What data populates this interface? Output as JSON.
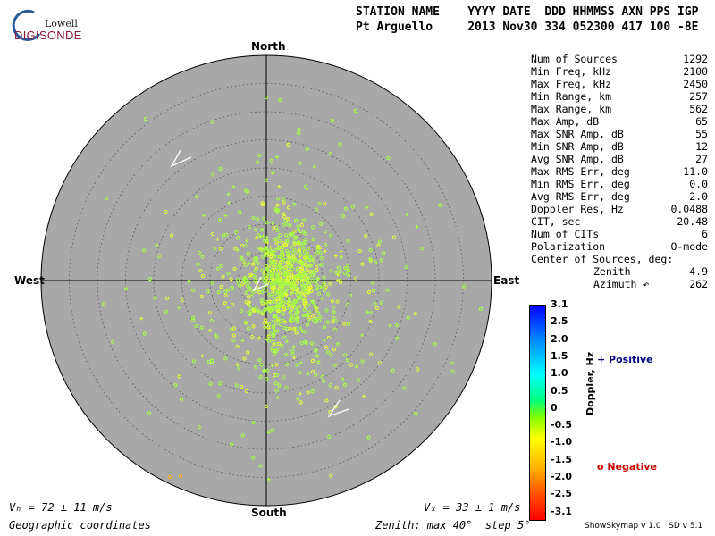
{
  "logo": {
    "top_text": "Lowell",
    "brand": "DIGISONDE"
  },
  "header": {
    "labels": "STATION NAME    YYYY DATE  DDD HHMMSS AXN PPS IGP",
    "values": "Pt Arguello     2013 Nov30 334 052300 417 100 -8E"
  },
  "directions": {
    "north": "North",
    "south": "South",
    "east": "East",
    "west": "West"
  },
  "stats": [
    {
      "label": "Num of Sources",
      "value": "1292"
    },
    {
      "label": "Min Freq, kHz",
      "value": "2100"
    },
    {
      "label": "Max Freq, kHz",
      "value": "2450"
    },
    {
      "label": "Min Range, km",
      "value": "257"
    },
    {
      "label": "Max Range, km",
      "value": "562"
    },
    {
      "label": "Max Amp, dB",
      "value": "65"
    },
    {
      "label": "Max SNR Amp, dB",
      "value": "55"
    },
    {
      "label": "Min SNR Amp, dB",
      "value": "12"
    },
    {
      "label": "Avg SNR Amp, dB",
      "value": "27"
    },
    {
      "label": "Max RMS Err, deg",
      "value": "11.0"
    },
    {
      "label": "Min RMS Err, deg",
      "value": "0.0"
    },
    {
      "label": "Avg RMS Err, deg",
      "value": "2.0"
    },
    {
      "label": "Doppler Res, Hz",
      "value": "0.0488"
    },
    {
      "label": "CIT, sec",
      "value": "20.48"
    },
    {
      "label": "Num of CITs",
      "value": "6"
    },
    {
      "label": "Polarization",
      "value": "O-mode"
    },
    {
      "label": "Center of Sources, deg:",
      "value": ""
    }
  ],
  "center": [
    {
      "label": "Zenith",
      "value": "4.9"
    },
    {
      "label": "Azimuth ↶",
      "value": "262"
    }
  ],
  "colorbar": {
    "label": "Doppler, Hz",
    "ticks": [
      "3.1",
      "2.5",
      "2.0",
      "1.5",
      "1.0",
      "0.5",
      "0",
      "-0.5",
      "-1.0",
      "-1.5",
      "-2.0",
      "-2.5",
      "-3.1"
    ]
  },
  "legend": {
    "positive": "+ Positive",
    "negative": "o Negative"
  },
  "footer": {
    "vh": "Vₕ = 72 ± 11 m/s",
    "vz": "Vₓ = 33 ± 1 m/s",
    "coords": "Geographic coordinates",
    "zenith": "Zenith: max 40°  step 5°",
    "version": "ShowSkymap v 1.0   SD v 5.1"
  },
  "colors": {
    "disk": "#a8a8a8",
    "point_main": "#a8ff40",
    "point_alt": "#e8ff30",
    "point_orange": "#ffb000",
    "arrow": "#ffffff"
  }
}
